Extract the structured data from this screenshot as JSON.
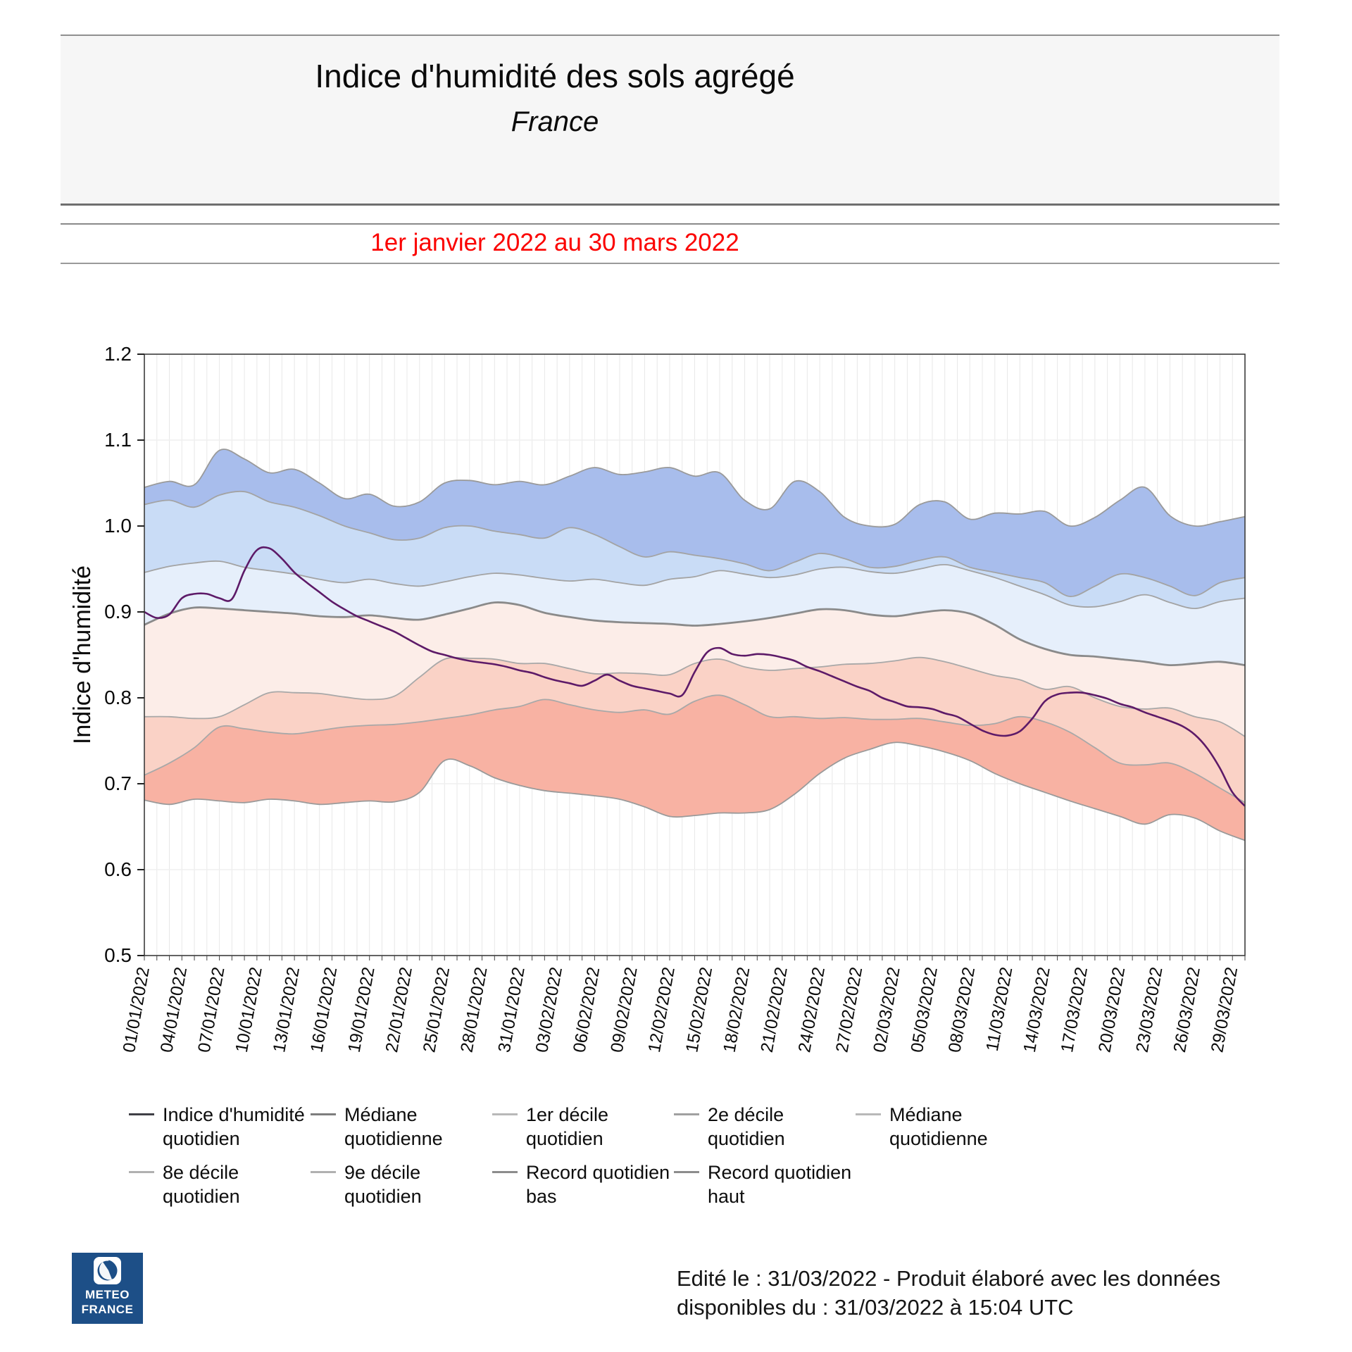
{
  "header": {
    "title": "Indice d'humidité des sols agrégé",
    "subtitle": "France"
  },
  "period": {
    "text": "1er janvier 2022 au 30 mars 2022",
    "color": "#fb0200"
  },
  "logo": {
    "line1": "METEO",
    "line2": "FRANCE",
    "bg_color": "#1d4f87"
  },
  "footer": {
    "line1": "Edité le : 31/03/2022 - Produit élaboré avec les données",
    "line2": "disponibles du : 31/03/2022 à 15:04 UTC"
  },
  "legend": {
    "items": [
      {
        "line1": "Indice d'humidité",
        "line2": "quotidien",
        "color": "#3f3f46"
      },
      {
        "line1": "Médiane",
        "line2": "quotidienne",
        "color": "#7d7d7d"
      },
      {
        "line1": "1er décile quotidien",
        "line2": "",
        "color": "#b8b8b8"
      },
      {
        "line1": "2e décile quotidien",
        "line2": "",
        "color": "#a0a0a0"
      },
      {
        "line1": "Médiane",
        "line2": "quotidienne",
        "color": "#b8b8b8"
      },
      {
        "line1": "8e décile quotidien",
        "line2": "",
        "color": "#b0b0b0"
      },
      {
        "line1": "9e décile quotidien",
        "line2": "",
        "color": "#b0b0b0"
      },
      {
        "line1": "Record quotidien",
        "line2": "bas",
        "color": "#8c8c8c"
      },
      {
        "line1": "Record quotidien",
        "line2": "haut",
        "color": "#8c8c8c"
      }
    ]
  },
  "chart_data": {
    "type": "area",
    "title": "Indice d'humidité des sols agrégé - France",
    "xlabel": "",
    "ylabel": "Indice d'humidité",
    "ylim": [
      0.5,
      1.2
    ],
    "yticks": [
      "0.5",
      "0.6",
      "0.7",
      "0.8",
      "0.9",
      "1.0",
      "1.1",
      "1.2"
    ],
    "x_is_days_since": "01/01/2022",
    "x_span_days": 88,
    "x_tick_step_days": 3,
    "x_tick_labels": [
      "01/01/2022",
      "04/01/2022",
      "07/01/2022",
      "10/01/2022",
      "13/01/2022",
      "16/01/2022",
      "19/01/2022",
      "22/01/2022",
      "25/01/2022",
      "28/01/2022",
      "31/01/2022",
      "03/02/2022",
      "06/02/2022",
      "09/02/2022",
      "12/02/2022",
      "15/02/2022",
      "18/02/2022",
      "21/02/2022",
      "24/02/2022",
      "27/02/2022",
      "02/03/2022",
      "05/03/2022",
      "08/03/2022",
      "11/03/2022",
      "14/03/2022",
      "17/03/2022",
      "20/03/2022",
      "23/03/2022",
      "26/03/2022",
      "29/03/2022"
    ],
    "band_sample_step_days": 2,
    "series": [
      {
        "name": "Record quotidien haut",
        "role": "record_haut",
        "color": "#9a9a9a",
        "values": [
          1.045,
          1.052,
          1.048,
          1.088,
          1.078,
          1.062,
          1.066,
          1.05,
          1.032,
          1.037,
          1.023,
          1.028,
          1.05,
          1.053,
          1.048,
          1.052,
          1.048,
          1.058,
          1.068,
          1.06,
          1.063,
          1.068,
          1.058,
          1.062,
          1.03,
          1.02,
          1.052,
          1.04,
          1.01,
          1.0,
          1.002,
          1.025,
          1.028,
          1.008,
          1.015,
          1.014,
          1.017,
          1.0,
          1.01,
          1.03,
          1.045,
          1.012,
          1.0,
          1.005,
          1.011
        ]
      },
      {
        "name": "9e décile quotidien",
        "role": "decile9",
        "color": "#a3a3a3",
        "values": [
          1.025,
          1.03,
          1.022,
          1.036,
          1.04,
          1.028,
          1.022,
          1.012,
          1.0,
          0.992,
          0.984,
          0.986,
          0.998,
          1.0,
          0.994,
          0.99,
          0.986,
          0.998,
          0.99,
          0.976,
          0.964,
          0.97,
          0.966,
          0.962,
          0.956,
          0.948,
          0.958,
          0.968,
          0.962,
          0.952,
          0.953,
          0.96,
          0.964,
          0.952,
          0.946,
          0.94,
          0.934,
          0.918,
          0.93,
          0.944,
          0.94,
          0.93,
          0.919,
          0.934,
          0.94
        ]
      },
      {
        "name": "8e décile quotidien",
        "role": "decile8",
        "color": "#a3a3a3",
        "values": [
          0.946,
          0.953,
          0.957,
          0.959,
          0.952,
          0.948,
          0.944,
          0.938,
          0.934,
          0.938,
          0.933,
          0.93,
          0.935,
          0.941,
          0.945,
          0.943,
          0.939,
          0.936,
          0.938,
          0.934,
          0.931,
          0.938,
          0.941,
          0.948,
          0.944,
          0.94,
          0.943,
          0.95,
          0.952,
          0.947,
          0.945,
          0.95,
          0.955,
          0.948,
          0.94,
          0.93,
          0.92,
          0.908,
          0.906,
          0.912,
          0.92,
          0.911,
          0.904,
          0.912,
          0.916
        ]
      },
      {
        "name": "Médiane quotidienne",
        "role": "mediane",
        "color": "#8a8a8a",
        "values": [
          0.885,
          0.898,
          0.905,
          0.904,
          0.902,
          0.9,
          0.898,
          0.895,
          0.894,
          0.896,
          0.893,
          0.891,
          0.897,
          0.904,
          0.911,
          0.908,
          0.899,
          0.894,
          0.89,
          0.888,
          0.887,
          0.886,
          0.884,
          0.886,
          0.889,
          0.893,
          0.898,
          0.903,
          0.902,
          0.897,
          0.895,
          0.899,
          0.902,
          0.898,
          0.885,
          0.868,
          0.857,
          0.85,
          0.848,
          0.845,
          0.842,
          0.838,
          0.84,
          0.842,
          0.838
        ]
      },
      {
        "name": "2e décile quotidien",
        "role": "decile2",
        "color": "#a8a8a8",
        "values": [
          0.778,
          0.778,
          0.776,
          0.778,
          0.792,
          0.806,
          0.806,
          0.805,
          0.801,
          0.798,
          0.802,
          0.824,
          0.845,
          0.846,
          0.845,
          0.84,
          0.84,
          0.834,
          0.828,
          0.829,
          0.828,
          0.827,
          0.84,
          0.845,
          0.836,
          0.832,
          0.834,
          0.836,
          0.839,
          0.84,
          0.843,
          0.847,
          0.842,
          0.834,
          0.826,
          0.821,
          0.81,
          0.813,
          0.8,
          0.79,
          0.787,
          0.788,
          0.778,
          0.772,
          0.755
        ]
      },
      {
        "name": "1er décile quotidien",
        "role": "decile1",
        "color": "#a8a8a8",
        "values": [
          0.71,
          0.724,
          0.742,
          0.766,
          0.764,
          0.76,
          0.758,
          0.762,
          0.766,
          0.768,
          0.769,
          0.772,
          0.776,
          0.78,
          0.786,
          0.79,
          0.798,
          0.792,
          0.786,
          0.783,
          0.786,
          0.781,
          0.796,
          0.803,
          0.792,
          0.778,
          0.778,
          0.776,
          0.777,
          0.775,
          0.775,
          0.776,
          0.772,
          0.768,
          0.77,
          0.778,
          0.772,
          0.76,
          0.742,
          0.724,
          0.722,
          0.724,
          0.712,
          0.695,
          0.678
        ]
      },
      {
        "name": "Record quotidien bas",
        "role": "record_bas",
        "color": "#9a9a9a",
        "values": [
          0.681,
          0.676,
          0.682,
          0.68,
          0.678,
          0.682,
          0.68,
          0.676,
          0.678,
          0.68,
          0.679,
          0.69,
          0.727,
          0.721,
          0.707,
          0.698,
          0.692,
          0.689,
          0.686,
          0.682,
          0.673,
          0.662,
          0.663,
          0.666,
          0.666,
          0.67,
          0.688,
          0.712,
          0.73,
          0.74,
          0.748,
          0.744,
          0.737,
          0.727,
          0.712,
          0.7,
          0.69,
          0.68,
          0.671,
          0.662,
          0.653,
          0.664,
          0.66,
          0.645,
          0.634
        ]
      },
      {
        "name": "Indice d'humidité quotidien",
        "role": "indice",
        "color": "#5d1a68",
        "sample_step_days": 1,
        "values": [
          0.9,
          0.893,
          0.897,
          0.916,
          0.921,
          0.921,
          0.916,
          0.915,
          0.948,
          0.972,
          0.974,
          0.962,
          0.946,
          0.934,
          0.923,
          0.912,
          0.903,
          0.895,
          0.889,
          0.883,
          0.877,
          0.869,
          0.861,
          0.854,
          0.85,
          0.846,
          0.843,
          0.841,
          0.839,
          0.836,
          0.832,
          0.829,
          0.824,
          0.82,
          0.817,
          0.814,
          0.82,
          0.827,
          0.82,
          0.814,
          0.811,
          0.808,
          0.805,
          0.803,
          0.83,
          0.853,
          0.858,
          0.851,
          0.849,
          0.851,
          0.85,
          0.847,
          0.843,
          0.836,
          0.831,
          0.825,
          0.819,
          0.813,
          0.808,
          0.8,
          0.795,
          0.79,
          0.789,
          0.787,
          0.782,
          0.778,
          0.77,
          0.762,
          0.757,
          0.756,
          0.761,
          0.776,
          0.796,
          0.804,
          0.806,
          0.806,
          0.803,
          0.799,
          0.793,
          0.789,
          0.783,
          0.778,
          0.773,
          0.767,
          0.757,
          0.741,
          0.718,
          0.69,
          0.674
        ]
      }
    ],
    "bands": [
      {
        "upper": "record_haut",
        "lower": "decile9",
        "color": "#a8bdec"
      },
      {
        "upper": "decile9",
        "lower": "decile8",
        "color": "#c9dcf6"
      },
      {
        "upper": "decile8",
        "lower": "mediane",
        "color": "#e6effb"
      },
      {
        "upper": "mediane",
        "lower": "decile2",
        "color": "#fcede8"
      },
      {
        "upper": "decile2",
        "lower": "decile1",
        "color": "#fad2c6"
      },
      {
        "upper": "decile1",
        "lower": "record_bas",
        "color": "#f8b2a3"
      }
    ],
    "grid": {
      "vertical_every_day": true,
      "v_color": "#e8e8e8",
      "h_color": "#efefef",
      "border_color": "#3c3c3c"
    }
  }
}
